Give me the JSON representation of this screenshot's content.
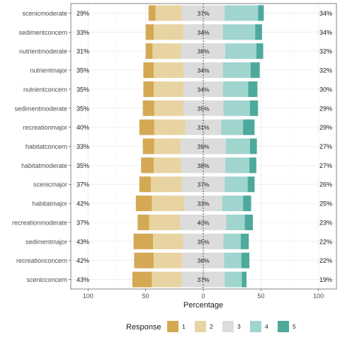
{
  "chart_data": {
    "type": "bar",
    "subtype": "diverging-stacked-likert",
    "xlabel": "Percentage",
    "x_ticks": [
      "100",
      "50",
      "0",
      "50",
      "100"
    ],
    "xlim": [
      -100,
      100
    ],
    "grid": true,
    "legend": {
      "title": "Response",
      "placement": "bottom",
      "labels": [
        "1",
        "2",
        "3",
        "4",
        "5"
      ],
      "colors": [
        "#D4A954",
        "#E8D4A2",
        "#DCDCDC",
        "#9FD5CE",
        "#4DA99C"
      ]
    },
    "categories": [
      "scenicmoderate",
      "sedimentconcern",
      "nutrientmoderate",
      "nutrientmajor",
      "nutrientconcern",
      "sedimentmoderate",
      "recreationmajor",
      "habitatconcern",
      "habitatmoderate",
      "scenicmajor",
      "habitatmajor",
      "recreationmoderate",
      "sedimentmajor",
      "recreationconcern",
      "scenicconcern"
    ],
    "series": [
      {
        "name": "1",
        "values": [
          6,
          7,
          6,
          9,
          9,
          10,
          13,
          10,
          11,
          10,
          14,
          10,
          17,
          17,
          17
        ]
      },
      {
        "name": "2",
        "values": [
          23,
          26,
          25,
          26,
          26,
          25,
          27,
          23,
          24,
          27,
          28,
          27,
          26,
          25,
          26
        ]
      },
      {
        "name": "3",
        "values": [
          37,
          34,
          38,
          34,
          34,
          35,
          31,
          39,
          38,
          37,
          33,
          40,
          35,
          36,
          37
        ]
      },
      {
        "name": "4",
        "values": [
          29,
          28,
          27,
          24,
          22,
          23,
          19,
          21,
          21,
          20,
          18,
          16,
          15,
          15,
          15
        ]
      },
      {
        "name": "5",
        "values": [
          5,
          6,
          6,
          8,
          8,
          7,
          10,
          6,
          6,
          6,
          7,
          7,
          7,
          7,
          4
        ]
      }
    ],
    "left_pct": [
      "29%",
      "33%",
      "31%",
      "35%",
      "35%",
      "35%",
      "40%",
      "33%",
      "35%",
      "37%",
      "42%",
      "37%",
      "43%",
      "42%",
      "43%"
    ],
    "mid_pct": [
      "37%",
      "34%",
      "38%",
      "34%",
      "34%",
      "35%",
      "31%",
      "39%",
      "38%",
      "37%",
      "33%",
      "40%",
      "35%",
      "36%",
      "37%"
    ],
    "right_pct": [
      "34%",
      "34%",
      "32%",
      "32%",
      "30%",
      "29%",
      "29%",
      "27%",
      "27%",
      "26%",
      "25%",
      "23%",
      "22%",
      "22%",
      "19%"
    ]
  }
}
